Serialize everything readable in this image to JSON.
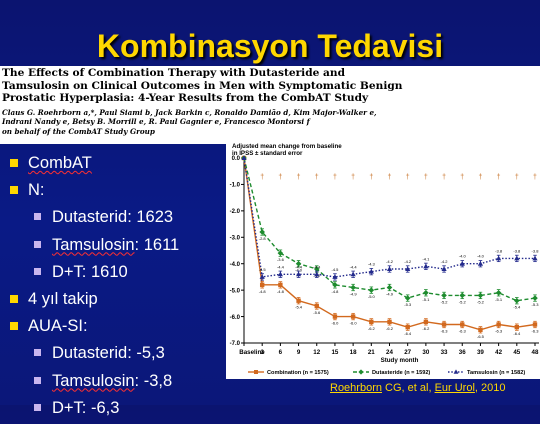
{
  "slide": {
    "title": "Kombinasyon Tedavisi",
    "paper_title_lines": [
      "The Effects of Combination Therapy with Dutasteride and",
      "Tamsulosin on Clinical Outcomes in Men with Symptomatic Benign",
      "Prostatic Hyperplasia: 4-Year Results from the CombAT Study"
    ],
    "paper_author_lines": [
      "Claus G. Roehrborn a,*, Paul Siami b, Jack Barkin c, Ronaldo Damião d, Kim Major-Walker e,",
      "Indrani Nandy e, Betsy B. Morrill e, R. Paul Gagnier e, Francesco Montorsi f",
      "on behalf of the CombAT Study Group"
    ],
    "bullets": [
      {
        "level": 1,
        "parts": [
          {
            "text": "CombAT",
            "squiggle": true
          }
        ]
      },
      {
        "level": 1,
        "parts": [
          {
            "text": "N:",
            "squiggle": false
          }
        ]
      },
      {
        "level": 2,
        "parts": [
          {
            "text": "Dutasterid: 1623",
            "squiggle": false
          }
        ]
      },
      {
        "level": 2,
        "parts": [
          {
            "text": "Tamsulosin",
            "squiggle": true
          },
          {
            "text": ": 1611",
            "squiggle": false
          }
        ]
      },
      {
        "level": 2,
        "parts": [
          {
            "text": "D+T: 1610",
            "squiggle": false
          }
        ]
      },
      {
        "level": 1,
        "parts": [
          {
            "text": "4 yıl takip",
            "squiggle": false
          }
        ]
      },
      {
        "level": 1,
        "parts": [
          {
            "text": "AUA-SI:",
            "squiggle": false
          }
        ]
      },
      {
        "level": 2,
        "parts": [
          {
            "text": "Dutasterid: -5,3",
            "squiggle": false
          }
        ]
      },
      {
        "level": 2,
        "parts": [
          {
            "text": "Tamsulosin",
            "squiggle": true
          },
          {
            "text": ": -3,8",
            "squiggle": false
          }
        ]
      },
      {
        "level": 2,
        "parts": [
          {
            "text": "D+T: -6,3",
            "squiggle": false
          }
        ]
      }
    ],
    "citation_parts": [
      {
        "text": "Roehrborn",
        "underline": true
      },
      {
        "text": " CG, et al, ",
        "underline": false
      },
      {
        "text": "Eur Urol",
        "underline": true
      },
      {
        "text": ", 2010",
        "underline": false
      }
    ],
    "colors": {
      "background": "#0a1a86",
      "title": "#ffd700",
      "bullet_mark": "#ffd700",
      "sub_bullet_mark": "#c9b6ef",
      "text": "#ffffff"
    }
  },
  "chart_data": {
    "type": "line",
    "ylabel": "Adjusted mean change from baseline in IPSS ± standard error",
    "xlabel": "Study month",
    "categories": [
      "Baseline",
      "3",
      "6",
      "9",
      "12",
      "15",
      "18",
      "21",
      "24",
      "27",
      "30",
      "33",
      "36",
      "39",
      "42",
      "45",
      "48"
    ],
    "ylim": [
      -7.0,
      0.0
    ],
    "yticks": [
      "0.0",
      "-1.0",
      "-2.0",
      "-3.0",
      "-4.0",
      "-5.0",
      "-6.0",
      "-7.0"
    ],
    "grid": false,
    "legend_position": "bottom",
    "significance_marker": "†",
    "series": [
      {
        "name": "Combination (n = 1575)",
        "color": "#d2691e",
        "style": "solid",
        "marker": "square",
        "values": [
          0.0,
          -4.8,
          -4.8,
          -5.4,
          -5.6,
          -6.0,
          -6.0,
          -6.2,
          -6.2,
          -6.4,
          -6.2,
          -6.3,
          -6.3,
          -6.5,
          -6.3,
          -6.4,
          -6.3
        ]
      },
      {
        "name": "Dutasteride (n = 1592)",
        "color": "#1e8c2f",
        "style": "dashed",
        "marker": "diamond",
        "values": [
          0.0,
          -2.8,
          -3.6,
          -4.0,
          -4.2,
          -4.8,
          -4.9,
          -5.0,
          -4.9,
          -5.3,
          -5.1,
          -5.2,
          -5.2,
          -5.2,
          -5.1,
          -5.4,
          -5.3
        ]
      },
      {
        "name": "Tamsulosin (n = 1582)",
        "color": "#232a8c",
        "style": "dotted",
        "marker": "triangle",
        "values": [
          0.0,
          -4.5,
          -4.4,
          -4.4,
          -4.4,
          -4.5,
          -4.4,
          -4.3,
          -4.2,
          -4.2,
          -4.1,
          -4.2,
          -4.0,
          -4.0,
          -3.8,
          -3.8,
          -3.8
        ]
      }
    ]
  }
}
